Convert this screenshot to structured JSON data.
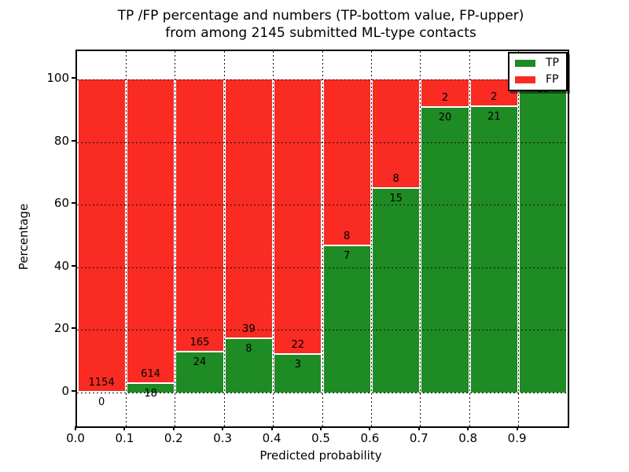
{
  "title": {
    "line1": "TP /FP percentage and numbers (TP-bottom value, FP-upper)",
    "line2": "from among 2145 submitted ML-type contacts"
  },
  "chart_data": {
    "type": "bar",
    "stacked": true,
    "normalized": "each bin scaled to 100%",
    "title": "TP /FP percentage and numbers (TP-bottom value, FP-upper)\nfrom among 2145 submitted ML-type contacts",
    "total_contacts": 2145,
    "xlabel": "Predicted probability",
    "ylabel": "Percentage",
    "xlim": [
      0.0,
      1.0
    ],
    "ylim": [
      -10,
      110
    ],
    "grid": "dotted black, on",
    "legend_position": "upper right",
    "x_tick_labels": [
      "0.0",
      "0.1",
      "0.2",
      "0.3",
      "0.4",
      "0.5",
      "0.6",
      "0.7",
      "0.8",
      "0.9"
    ],
    "y_ticks": [
      0,
      20,
      40,
      60,
      80,
      100
    ],
    "bin_width": 0.1,
    "categories": [
      0.0,
      0.1,
      0.2,
      0.3,
      0.4,
      0.5,
      0.6,
      0.7,
      0.8,
      0.9
    ],
    "series": [
      {
        "name": "TP",
        "color": "#1f8b24",
        "counts": [
          0,
          18,
          24,
          8,
          3,
          7,
          15,
          20,
          21,
          15
        ]
      },
      {
        "name": "FP",
        "color": "#f92b22",
        "counts": [
          1154,
          614,
          165,
          39,
          22,
          8,
          8,
          2,
          2,
          0
        ]
      }
    ],
    "tp_percent": [
      0.0,
      2.8,
      12.7,
      17.0,
      12.0,
      46.7,
      65.2,
      90.9,
      91.3,
      100.0
    ],
    "tp_labels": [
      "0",
      "18",
      "24",
      "8",
      "3",
      "7",
      "15",
      "20",
      "21",
      "15"
    ],
    "fp_labels": [
      "1154",
      "614",
      "165",
      "39",
      "22",
      "8",
      "8",
      "2",
      "2",
      null
    ],
    "legend": {
      "entries": [
        {
          "label": "TP",
          "color": "#1f8b24"
        },
        {
          "label": "FP",
          "color": "#f92b22"
        }
      ]
    },
    "colors": {
      "tp": "#1f8b24",
      "fp": "#f92b22",
      "grid": "#111111",
      "background": "#ffffff",
      "spine": "#000000"
    }
  }
}
